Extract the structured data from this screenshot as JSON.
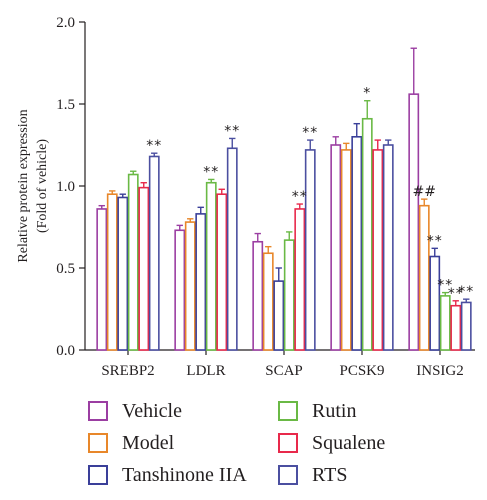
{
  "colors": {
    "Vehicle": "#9b3ea2",
    "Model": "#e8872a",
    "Tanshinone IIA": "#3a3f99",
    "Rutin": "#6ab945",
    "Squalene": "#e8294b",
    "RTS": "#4b4fa0"
  },
  "legend": [
    {
      "name": "Vehicle",
      "color": "#9b3ea2"
    },
    {
      "name": "Rutin",
      "color": "#6ab945"
    },
    {
      "name": "Model",
      "color": "#e8872a"
    },
    {
      "name": "Squalene",
      "color": "#e8294b"
    },
    {
      "name": "Tanshinone IIA",
      "color": "#3a3f99"
    },
    {
      "name": "RTS",
      "color": "#4b4fa0"
    }
  ],
  "chart_data": {
    "type": "bar",
    "title": "",
    "xlabel": "",
    "ylabel": "Relative protein expression",
    "ylabel2": "(Fold of vehicle)",
    "ylim": [
      0,
      2.0
    ],
    "yticks": [
      "0.0",
      "0.5",
      "1.0",
      "1.5",
      "2.0"
    ],
    "categories": [
      "SREBP2",
      "LDLR",
      "SCAP",
      "PCSK9",
      "INSIG2"
    ],
    "legend_position": "bottom",
    "grid": false,
    "series": [
      {
        "name": "Vehicle",
        "values": [
          0.86,
          0.73,
          0.66,
          1.25,
          1.56
        ],
        "errors": [
          0.02,
          0.03,
          0.05,
          0.05,
          0.28
        ],
        "marks": [
          "",
          "",
          "",
          "",
          ""
        ]
      },
      {
        "name": "Model",
        "values": [
          0.95,
          0.78,
          0.59,
          1.22,
          0.88
        ],
        "errors": [
          0.02,
          0.02,
          0.04,
          0.04,
          0.04
        ],
        "marks": [
          "",
          "",
          "",
          "",
          "##"
        ]
      },
      {
        "name": "Tanshinone IIA",
        "values": [
          0.93,
          0.83,
          0.42,
          1.3,
          0.57
        ],
        "errors": [
          0.02,
          0.04,
          0.08,
          0.08,
          0.05
        ],
        "marks": [
          "",
          "",
          "",
          "",
          "**"
        ]
      },
      {
        "name": "Rutin",
        "values": [
          1.07,
          1.02,
          0.67,
          1.41,
          0.33
        ],
        "errors": [
          0.02,
          0.02,
          0.05,
          0.11,
          0.02
        ],
        "marks": [
          "",
          "**",
          "",
          "*",
          "**"
        ]
      },
      {
        "name": "Squalene",
        "values": [
          0.99,
          0.95,
          0.86,
          1.22,
          0.27
        ],
        "errors": [
          0.03,
          0.03,
          0.03,
          0.06,
          0.03
        ],
        "marks": [
          "",
          "",
          "**",
          "",
          "**"
        ]
      },
      {
        "name": "RTS",
        "values": [
          1.18,
          1.23,
          1.22,
          1.25,
          0.29
        ],
        "errors": [
          0.02,
          0.06,
          0.06,
          0.03,
          0.02
        ],
        "marks": [
          "**",
          "**",
          "**",
          "",
          "**"
        ]
      }
    ]
  }
}
